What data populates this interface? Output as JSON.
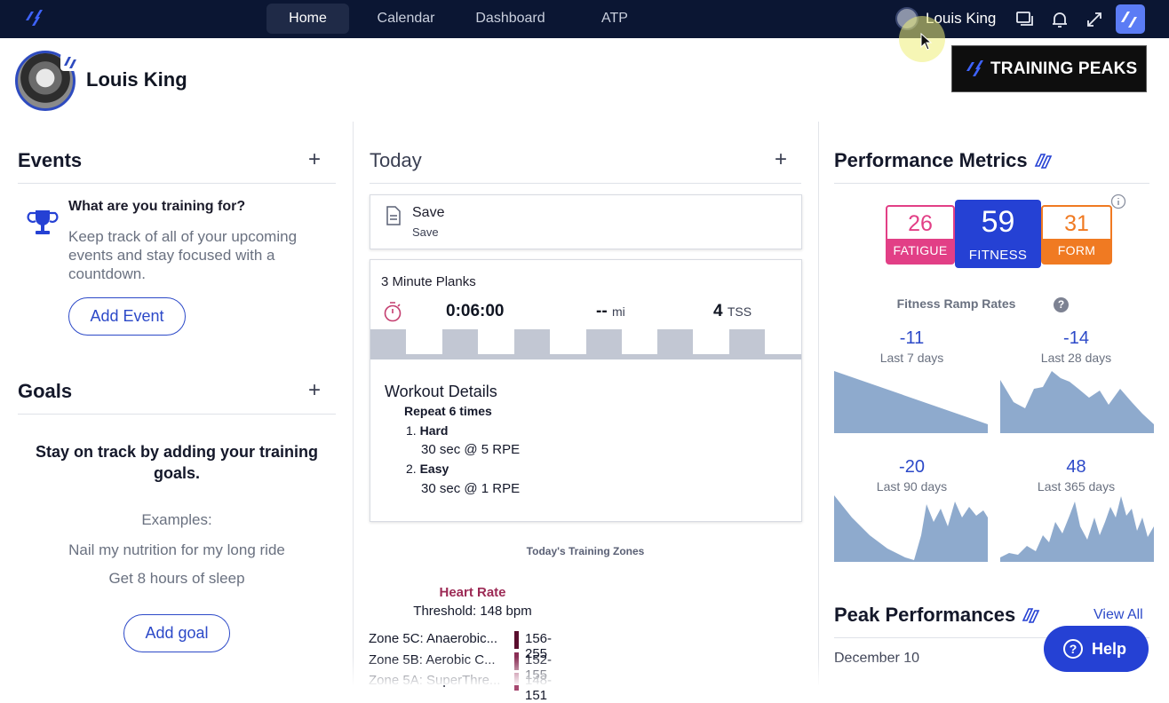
{
  "nav": {
    "tabs": [
      {
        "label": "Home",
        "active": true
      },
      {
        "label": "Calendar"
      },
      {
        "label": "Dashboard"
      },
      {
        "label": "ATP"
      }
    ],
    "user_name": "Louis King",
    "icons": [
      "chat-icon",
      "bell-icon",
      "expand-icon",
      "app-switch-icon"
    ]
  },
  "profile": {
    "name": "Louis King",
    "banner": "TRAINING PEAKS"
  },
  "events": {
    "title": "Events",
    "question": "What are you training for?",
    "description": "Keep track of all of your upcoming events and stay focused with a countdown.",
    "add_label": "Add Event"
  },
  "goals": {
    "title": "Goals",
    "cta": "Stay on track by adding your training goals.",
    "examples_label": "Examples:",
    "examples": [
      "Nail my nutrition for my long ride",
      "Get 8 hours of sleep"
    ],
    "add_label": "Add goal"
  },
  "today": {
    "title": "Today",
    "note": {
      "title": "Save",
      "subtitle": "Save"
    },
    "workout": {
      "title": "3 Minute Planks",
      "duration": "0:06:00",
      "distance": "--",
      "distance_unit": "mi",
      "tss": "4",
      "tss_unit": "TSS",
      "details_title": "Workout Details",
      "repeat": "Repeat 6 times",
      "steps": [
        {
          "num": "1.",
          "name": "Hard",
          "detail": "30 sec @ 5 RPE"
        },
        {
          "num": "2.",
          "name": "Easy",
          "detail": "30 sec @ 1 RPE"
        }
      ]
    },
    "zones_title": "Today's Training Zones",
    "heart_rate": {
      "title": "Heart Rate",
      "threshold": "Threshold: 148 bpm",
      "zones": [
        {
          "name": "Zone 5C: Anaerobic...",
          "range": "156-255",
          "color": "#5a0e2e"
        },
        {
          "name": "Zone 5B: Aerobic C...",
          "range": "152-155",
          "color": "#8a2e55"
        },
        {
          "name": "Zone 5A: SuperThre...",
          "range": "148-151",
          "color": "#a6476f"
        }
      ]
    }
  },
  "performance": {
    "title": "Performance Metrics",
    "fatigue": {
      "value": "26",
      "label": "FATIGUE",
      "color": "#e23f86"
    },
    "fitness": {
      "value": "59",
      "label": "FITNESS",
      "color": "#2541d4"
    },
    "form": {
      "value": "31",
      "label": "FORM",
      "color": "#f07a22"
    },
    "ramp_title": "Fitness Ramp Rates",
    "ramps": [
      {
        "value": "-11",
        "period": "Last 7 days"
      },
      {
        "value": "-14",
        "period": "Last 28 days"
      },
      {
        "value": "-20",
        "period": "Last 90 days"
      },
      {
        "value": "48",
        "period": "Last 365 days"
      }
    ]
  },
  "peak": {
    "title": "Peak Performances",
    "view_all": "View All",
    "date": "December 10"
  },
  "help": {
    "label": "Help"
  }
}
